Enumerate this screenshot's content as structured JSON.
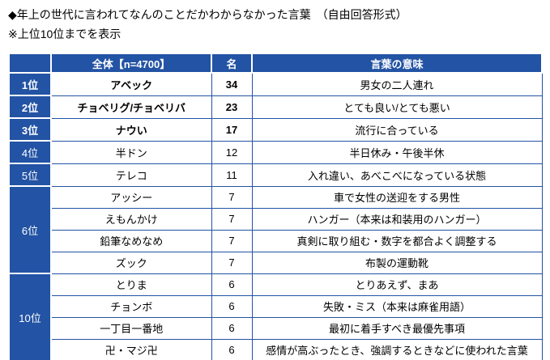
{
  "page": {
    "title": "◆年上の世代に言われてなんのことだかわからなかった言葉　（自由回答形式）",
    "subtitle": "※上位10位までを表示"
  },
  "colors": {
    "header_bg": "#2353A4",
    "border": "#2353A4",
    "header_text": "#FFFFFF",
    "body_text": "#000000",
    "cell_bg": "#FFFFFF"
  },
  "chart_data": {
    "type": "table",
    "title": "年上の世代に言われてなんのことだかわからなかった言葉（自由回答形式）",
    "note": "上位10位までを表示",
    "headers": {
      "rank": "",
      "word": "全体【n=4700】",
      "count": "名",
      "meaning": "言葉の意味"
    },
    "rows": [
      {
        "rank": "1位",
        "rank_span": 1,
        "word": "アベック",
        "count": 34,
        "meaning": "男女の二人連れ",
        "emphasis": true
      },
      {
        "rank": "2位",
        "rank_span": 1,
        "word": "チョベリグ/チョベリバ",
        "count": 23,
        "meaning": "とても良い/とても悪い",
        "emphasis": true
      },
      {
        "rank": "3位",
        "rank_span": 1,
        "word": "ナウい",
        "count": 17,
        "meaning": "流行に合っている",
        "emphasis": true
      },
      {
        "rank": "4位",
        "rank_span": 1,
        "word": "半ドン",
        "count": 12,
        "meaning": "半日休み・午後半休",
        "emphasis": false
      },
      {
        "rank": "5位",
        "rank_span": 1,
        "word": "テレコ",
        "count": 11,
        "meaning": "入れ違い、あべこべになっている状態",
        "emphasis": false
      },
      {
        "rank": "6位",
        "rank_span": 4,
        "word": "アッシー",
        "count": 7,
        "meaning": "車で女性の送迎をする男性",
        "emphasis": false
      },
      {
        "rank": "",
        "rank_span": 0,
        "word": "えもんかけ",
        "count": 7,
        "meaning": "ハンガー（本来は和装用のハンガー）",
        "emphasis": false
      },
      {
        "rank": "",
        "rank_span": 0,
        "word": "鉛筆なめなめ",
        "count": 7,
        "meaning": "真剣に取り組む・数字を都合よく調整する",
        "emphasis": false
      },
      {
        "rank": "",
        "rank_span": 0,
        "word": "ズック",
        "count": 7,
        "meaning": "布製の運動靴",
        "emphasis": false
      },
      {
        "rank": "10位",
        "rank_span": 4,
        "word": "とりま",
        "count": 6,
        "meaning": "とりあえず、まあ",
        "emphasis": false
      },
      {
        "rank": "",
        "rank_span": 0,
        "word": "チョンボ",
        "count": 6,
        "meaning": "失敗・ミス（本来は麻雀用語）",
        "emphasis": false
      },
      {
        "rank": "",
        "rank_span": 0,
        "word": "一丁目一番地",
        "count": 6,
        "meaning": "最初に着手すべき最優先事項",
        "emphasis": false
      },
      {
        "rank": "",
        "rank_span": 0,
        "word": "卍・マジ卍",
        "count": 6,
        "meaning": "感情が高ぶったとき、強調するときなどに使われた言葉",
        "emphasis": false
      }
    ]
  }
}
